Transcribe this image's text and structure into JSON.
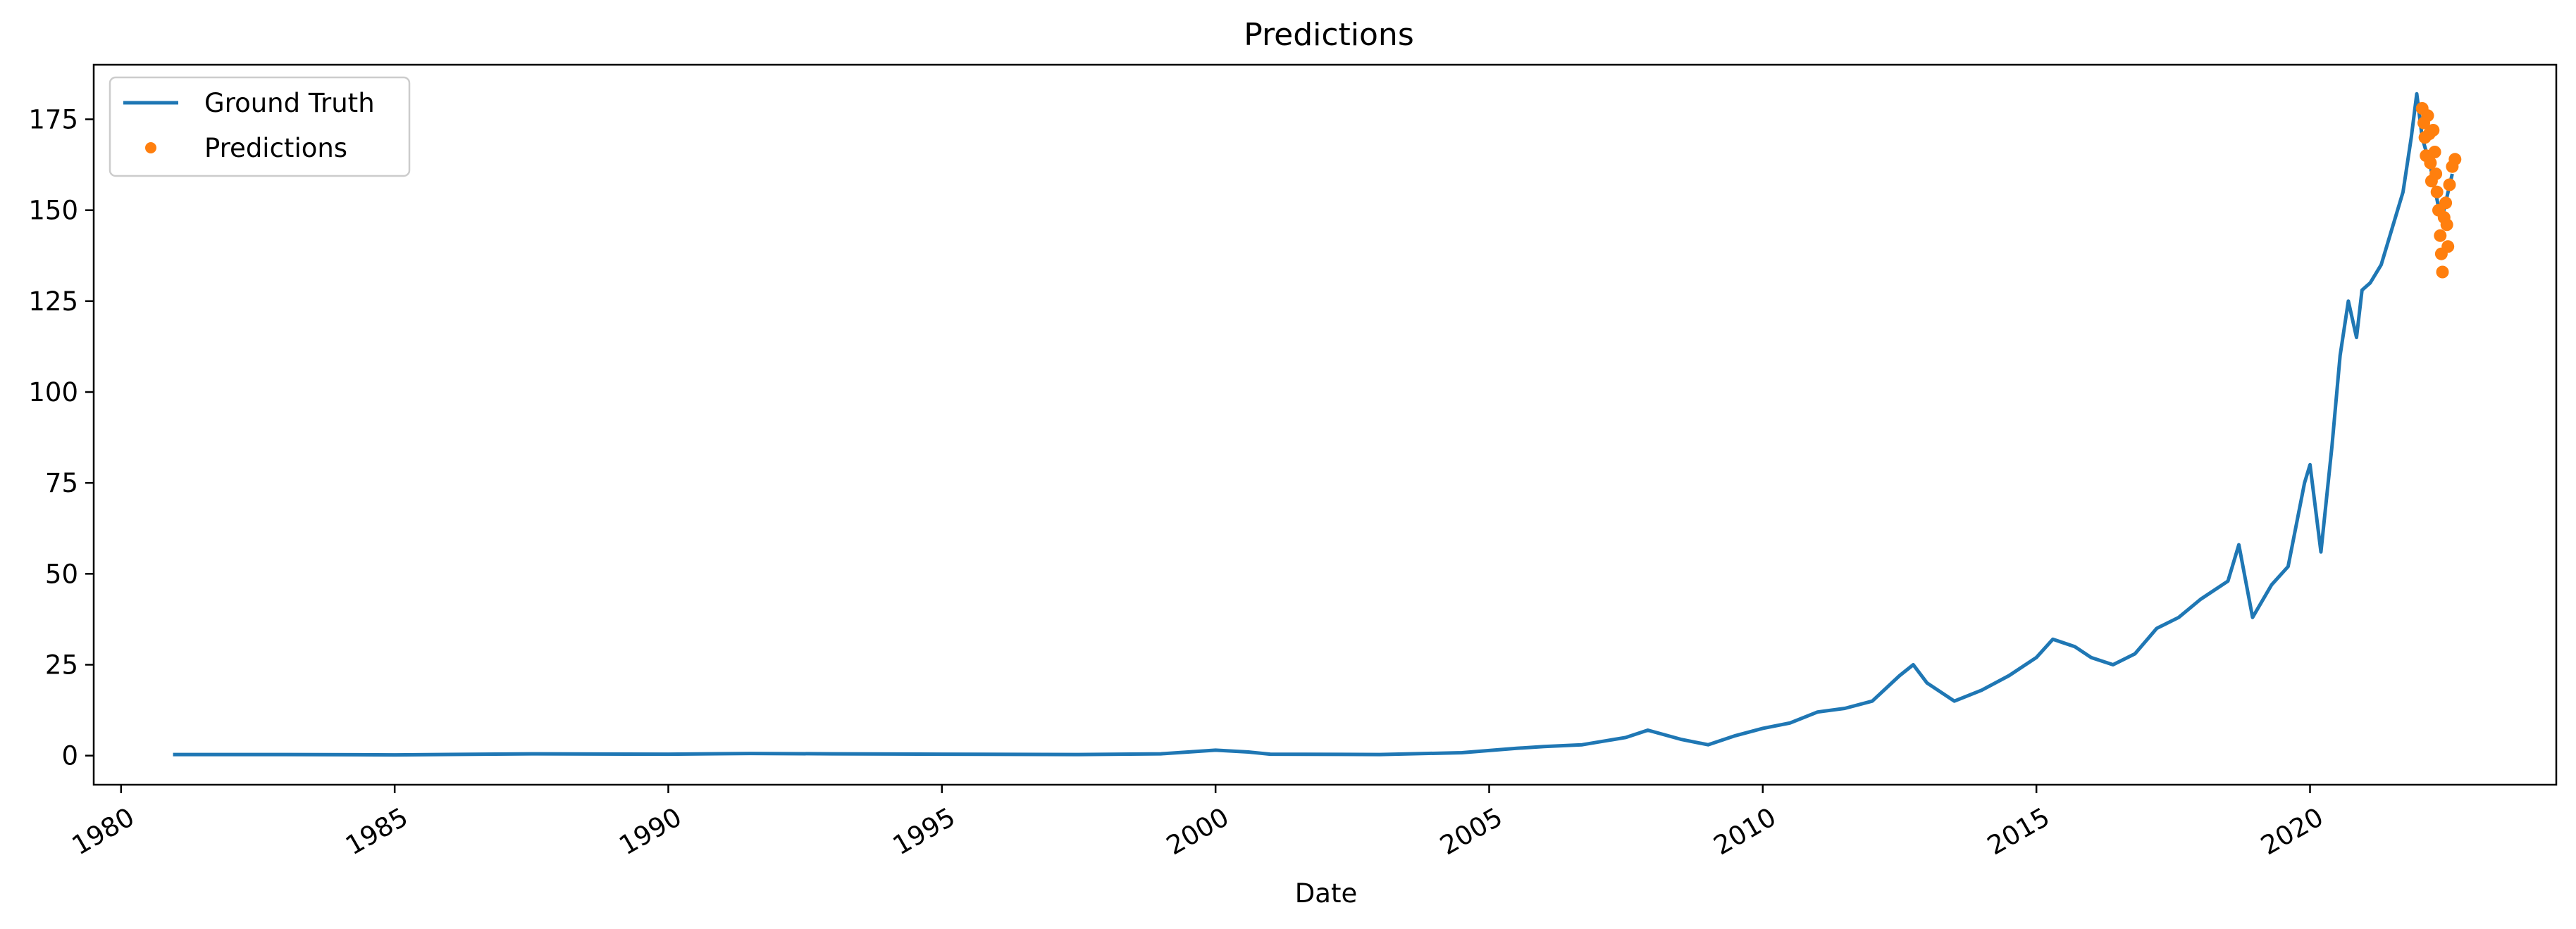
{
  "chart_data": {
    "type": "line",
    "title": "Predictions",
    "xlabel": "Date",
    "ylabel": "",
    "xlim": [
      1979.5,
      2024.5
    ],
    "ylim": [
      -8,
      190
    ],
    "x_ticks": [
      1980,
      1985,
      1990,
      1995,
      2000,
      2005,
      2010,
      2015,
      2020
    ],
    "x_tick_labels": [
      "1980",
      "1985",
      "1990",
      "1995",
      "2000",
      "2005",
      "2010",
      "2015",
      "2020"
    ],
    "y_ticks": [
      0,
      25,
      50,
      75,
      100,
      125,
      150,
      175
    ],
    "y_tick_labels": [
      "0",
      "25",
      "50",
      "75",
      "100",
      "125",
      "150",
      "175"
    ],
    "grid": false,
    "legend": {
      "placement": "top-left",
      "entries": [
        "Ground Truth",
        "Predictions"
      ]
    },
    "colors": {
      "ground_truth": "#1f77b4",
      "predictions": "#ff7f0e"
    },
    "series": [
      {
        "name": "Ground Truth",
        "style": "line",
        "x": [
          1980.95,
          1983.0,
          1985.0,
          1987.5,
          1990.0,
          1991.5,
          1993.0,
          1995.0,
          1997.5,
          1999.0,
          2000.0,
          2000.6,
          2001.0,
          2003.0,
          2004.5,
          2005.5,
          2006.0,
          2006.7,
          2007.5,
          2007.9,
          2008.5,
          2009.0,
          2009.5,
          2010.0,
          2010.5,
          2011.0,
          2011.5,
          2012.0,
          2012.5,
          2012.75,
          2013.0,
          2013.5,
          2014.0,
          2014.5,
          2015.0,
          2015.3,
          2015.7,
          2016.0,
          2016.4,
          2016.8,
          2017.2,
          2017.6,
          2018.0,
          2018.5,
          2018.7,
          2018.95,
          2019.3,
          2019.6,
          2019.9,
          2020.0,
          2020.2,
          2020.4,
          2020.55,
          2020.7,
          2020.85,
          2020.95,
          2021.1,
          2021.3,
          2021.5,
          2021.7,
          2021.85,
          2021.95,
          2022.05,
          2022.2,
          2022.4,
          2022.6
        ],
        "y": [
          0.3,
          0.3,
          0.2,
          0.5,
          0.4,
          0.6,
          0.5,
          0.4,
          0.3,
          0.5,
          1.5,
          1.0,
          0.4,
          0.3,
          0.8,
          2.0,
          2.5,
          3.0,
          5.0,
          7.0,
          4.5,
          3.0,
          5.5,
          7.5,
          9.0,
          12.0,
          13.0,
          15.0,
          22.0,
          25.0,
          20.0,
          15.0,
          18.0,
          22.0,
          27.0,
          32.0,
          30.0,
          27.0,
          25.0,
          28.0,
          35.0,
          38.0,
          43.0,
          48.0,
          58.0,
          38.0,
          47.0,
          52.0,
          75.0,
          80.0,
          56.0,
          85.0,
          110.0,
          125.0,
          115.0,
          128.0,
          130.0,
          135.0,
          145.0,
          155.0,
          170.0,
          182.0,
          170.0,
          162.0,
          147.0,
          160.0
        ]
      },
      {
        "name": "Predictions",
        "style": "markers",
        "x": [
          2022.05,
          2022.08,
          2022.1,
          2022.12,
          2022.15,
          2022.18,
          2022.2,
          2022.22,
          2022.25,
          2022.28,
          2022.3,
          2022.32,
          2022.35,
          2022.38,
          2022.4,
          2022.42,
          2022.45,
          2022.48,
          2022.5,
          2022.52,
          2022.55,
          2022.6,
          2022.65
        ],
        "y": [
          178,
          174,
          170,
          165,
          176,
          171,
          163,
          158,
          172,
          166,
          160,
          155,
          150,
          143,
          138,
          133,
          148,
          152,
          146,
          140,
          157,
          162,
          164
        ]
      }
    ]
  }
}
